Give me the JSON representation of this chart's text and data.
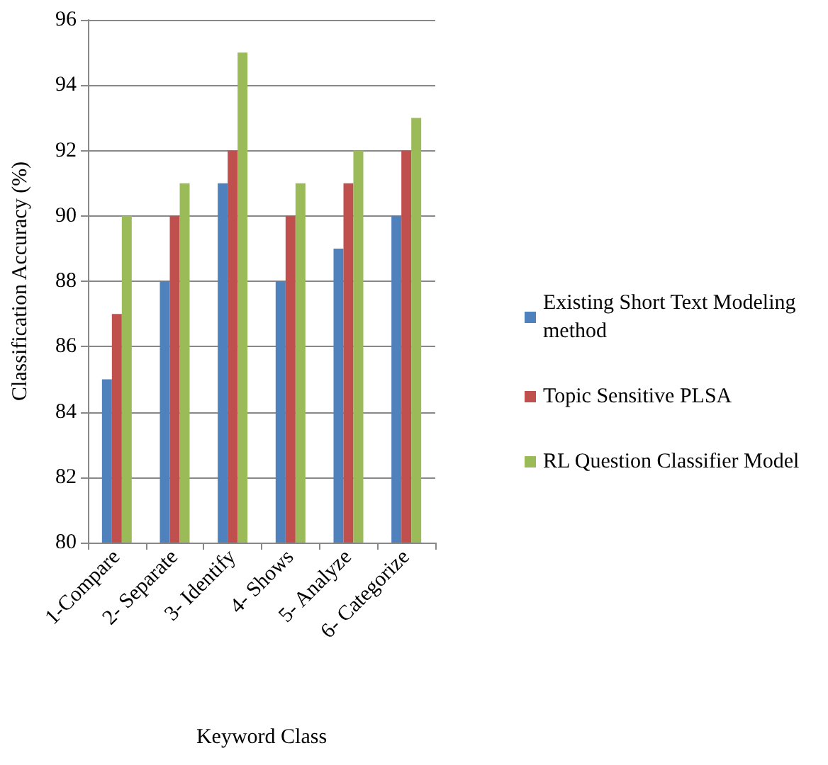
{
  "chart_data": {
    "type": "bar",
    "xlabel": "Keyword Class",
    "ylabel": "Classification Accuracy (%)",
    "categories": [
      "1-Compare",
      "2- Separate",
      "3- Identify",
      "4- Shows",
      "5- Analyze",
      "6- Categorize"
    ],
    "series": [
      {
        "name": "Existing Short Text Modeling method",
        "color": "#4f81bd",
        "values": [
          85,
          88,
          91,
          88,
          89,
          90
        ]
      },
      {
        "name": "Topic Sensitive PLSA",
        "color": "#c0504d",
        "values": [
          87,
          90,
          92,
          90,
          91,
          92
        ]
      },
      {
        "name": "RL Question Classifier Model",
        "color": "#9bbb59",
        "values": [
          90,
          91,
          95,
          91,
          92,
          93
        ]
      }
    ],
    "ylim": [
      80,
      96
    ],
    "yticks": [
      80,
      82,
      84,
      86,
      88,
      90,
      92,
      94,
      96
    ],
    "grid": "y",
    "legend": "right"
  }
}
